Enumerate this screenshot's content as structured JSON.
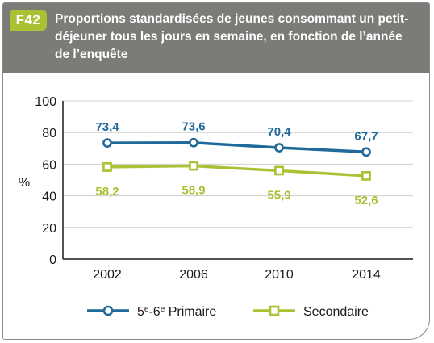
{
  "badge": "F42",
  "title": "Proportions standardisées de jeunes consommant un petit-déjeuner tous les jours en semaine, en fonction de l’année de l’enquête",
  "colors": {
    "header_bg": "#7b7b78",
    "badge_bg": "#a8c233",
    "primaire": "#1f6a9a",
    "secondaire": "#a8c233"
  },
  "chart_data": {
    "type": "line",
    "categories": [
      "2002",
      "2006",
      "2010",
      "2014"
    ],
    "ylabel": "%",
    "ylim": [
      0,
      100
    ],
    "yticks": [
      "0",
      "20",
      "40",
      "60",
      "80",
      "100"
    ],
    "grid": true,
    "legend_position": "bottom",
    "series": [
      {
        "name": "5e-6e Primaire",
        "name_parts": [
          "5",
          "e",
          "-6",
          "e",
          " Primaire"
        ],
        "values": [
          73.4,
          73.6,
          70.4,
          67.7
        ],
        "labels": [
          "73,4",
          "73,6",
          "70,4",
          "67,7"
        ],
        "marker": "circle",
        "label_position": "above"
      },
      {
        "name": "Secondaire",
        "values": [
          58.2,
          58.9,
          55.9,
          52.6
        ],
        "labels": [
          "58,2",
          "58,9",
          "55,9",
          "52,6"
        ],
        "marker": "square",
        "label_position": "below"
      }
    ]
  }
}
